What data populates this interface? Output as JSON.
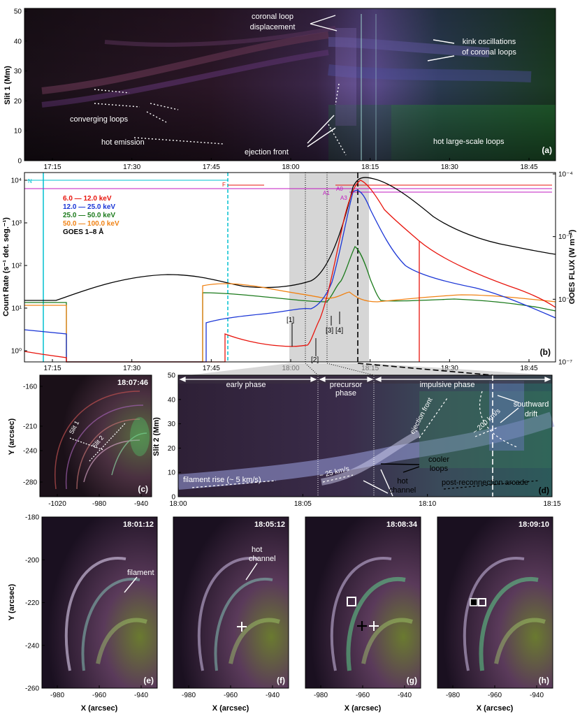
{
  "panel_a": {
    "ylabel": "Slit 1 (Mm)",
    "yticks": [
      "0",
      "10",
      "20",
      "30",
      "40",
      "50"
    ],
    "xticks": [
      "17:15",
      "17:30",
      "17:45",
      "18:00",
      "18:15",
      "18:30",
      "18:45"
    ],
    "label": "(a)",
    "annotations": {
      "coronal_loop_1": "coronal loop",
      "coronal_loop_2": "displacement",
      "kink_1": "kink oscillations",
      "kink_2": "of coronal loops",
      "converging": "converging loops",
      "hot_emission": "hot emission",
      "ejection_front": "ejection front",
      "hot_large": "hot large-scale loops"
    }
  },
  "panel_b": {
    "ylabel_left": "Count Rate (s⁻¹ det. seg.⁻¹)",
    "ylabel_right": "GOES FLUX (W m⁻²)",
    "yticks_left": [
      "10⁰",
      "10¹",
      "10²",
      "10³",
      "10⁴"
    ],
    "yticks_right": [
      "10⁻⁷",
      "10⁻⁶",
      "10⁻⁵",
      "10⁻⁴"
    ],
    "xticks": [
      "17:15",
      "17:30",
      "17:45",
      "18:00",
      "18:15",
      "18:30",
      "18:45"
    ],
    "label": "(b)",
    "legend": [
      {
        "text": "6.0 — 12.0 keV",
        "color": "#e8140c"
      },
      {
        "text": "12.0 — 25.0 keV",
        "color": "#1a35d6"
      },
      {
        "text": "25.0 — 50.0 keV",
        "color": "#1b7a1b"
      },
      {
        "text": "50.0 — 100.0 keV",
        "color": "#f08214"
      },
      {
        "text": "GOES 1–8 Å",
        "color": "#000000"
      }
    ],
    "markers": {
      "n": "N",
      "f": "F",
      "a0": "A0",
      "a1": "A1",
      "a3": "A3",
      "m1": "[1]",
      "m2": "[2]",
      "m3": "[3]",
      "m4": "[4]"
    }
  },
  "panel_c": {
    "time": "18:07:46",
    "ylabel": "Y (arcsec)",
    "yticks": [
      "-160",
      "-210",
      "-240",
      "-280"
    ],
    "xticks": [
      "-1020",
      "-980",
      "-940"
    ],
    "slit1": "Slit 1",
    "slit2": "Slit 2",
    "label": "(c)"
  },
  "panel_d": {
    "ylabel": "Slit 2 (Mm)",
    "yticks": [
      "0",
      "10",
      "20",
      "30",
      "40",
      "50"
    ],
    "xticks": [
      "18:00",
      "18:05",
      "18:10",
      "18:15"
    ],
    "label": "(d)",
    "phases": {
      "early": "early phase",
      "precursor_1": "precursor",
      "precursor_2": "phase",
      "impulsive": "impulsive phase"
    },
    "annotations": {
      "southward_1": "southward",
      "southward_2": "drift",
      "ejection_front": "ejection front",
      "speed_200": "~ 200 km/s",
      "speed_25": "~ 25 km/s",
      "cooler_1": "cooler",
      "cooler_2": "loops",
      "hot_1": "hot",
      "hot_2": "channel",
      "filament_rise": "filament rise (~ 5 km/s)",
      "post_reconnection": "post-reconnection arcade"
    }
  },
  "bottom_panels": {
    "ylabel": "Y (arcsec)",
    "xlabel": "X (arcsec)",
    "yticks": [
      "-180",
      "-200",
      "-220",
      "-240",
      "-260"
    ],
    "xticks": [
      "-980",
      "-960",
      "-940"
    ],
    "panels": [
      {
        "time": "18:01:12",
        "label": "(e)",
        "note": "filament"
      },
      {
        "time": "18:05:12",
        "label": "(f)",
        "note_1": "hot",
        "note_2": "channel"
      },
      {
        "time": "18:08:34",
        "label": "(g)"
      },
      {
        "time": "18:09:10",
        "label": "(h)"
      }
    ]
  }
}
